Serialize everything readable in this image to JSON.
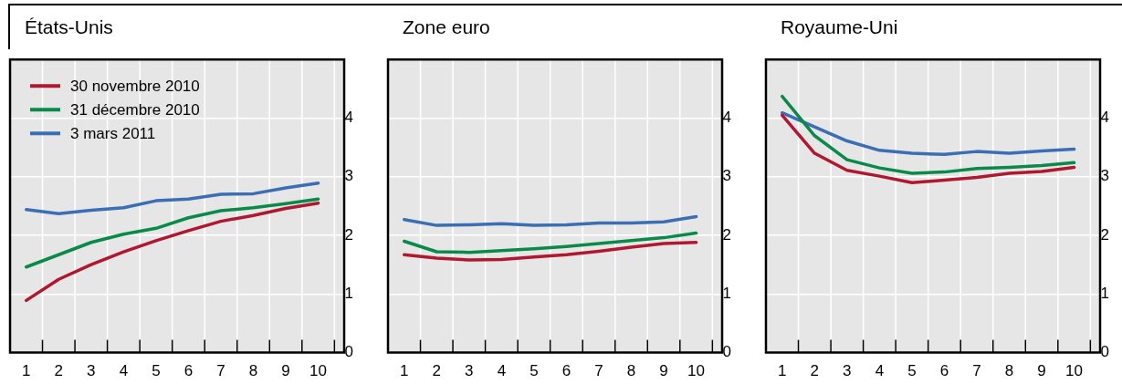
{
  "chart_data": [
    {
      "type": "line",
      "title": "États-Unis",
      "categories": [
        "1",
        "2",
        "3",
        "4",
        "5",
        "6",
        "7",
        "8",
        "9",
        "10"
      ],
      "ylim": [
        0,
        5
      ],
      "yticks": [
        0,
        1,
        2,
        3,
        4
      ],
      "grid": true,
      "legend": "top left",
      "series": [
        {
          "name": "30 novembre 2010",
          "color": "#b0182f",
          "values": [
            0.89,
            1.25,
            1.5,
            1.72,
            1.91,
            2.08,
            2.24,
            2.34,
            2.46,
            2.55
          ]
        },
        {
          "name": "31 décembre 2010",
          "color": "#0a8a4a",
          "values": [
            1.46,
            1.67,
            1.88,
            2.02,
            2.12,
            2.3,
            2.42,
            2.47,
            2.54,
            2.62
          ]
        },
        {
          "name": "3 mars 2011",
          "color": "#3b6eb5",
          "values": [
            2.44,
            2.37,
            2.43,
            2.47,
            2.59,
            2.62,
            2.7,
            2.71,
            2.81,
            2.89
          ]
        }
      ]
    },
    {
      "type": "line",
      "title": "Zone euro",
      "categories": [
        "1",
        "2",
        "3",
        "4",
        "5",
        "6",
        "7",
        "8",
        "9",
        "10"
      ],
      "ylim": [
        0,
        5
      ],
      "yticks": [
        0,
        1,
        2,
        3,
        4
      ],
      "grid": true,
      "series": [
        {
          "color": "#b0182f",
          "values": [
            1.67,
            1.61,
            1.58,
            1.59,
            1.63,
            1.67,
            1.73,
            1.8,
            1.86,
            1.88
          ]
        },
        {
          "color": "#0a8a4a",
          "values": [
            1.9,
            1.72,
            1.71,
            1.74,
            1.77,
            1.81,
            1.86,
            1.91,
            1.96,
            2.04
          ]
        },
        {
          "color": "#3b6eb5",
          "values": [
            2.27,
            2.17,
            2.18,
            2.2,
            2.17,
            2.18,
            2.21,
            2.21,
            2.23,
            2.32
          ]
        }
      ]
    },
    {
      "type": "line",
      "title": "Royaume-Uni",
      "categories": [
        "1",
        "2",
        "3",
        "4",
        "5",
        "6",
        "7",
        "8",
        "9",
        "10"
      ],
      "ylim": [
        0,
        5
      ],
      "yticks": [
        0,
        1,
        2,
        3,
        4
      ],
      "grid": true,
      "series": [
        {
          "color": "#b0182f",
          "values": [
            4.05,
            3.4,
            3.11,
            3.01,
            2.9,
            2.94,
            2.99,
            3.06,
            3.09,
            3.16
          ]
        },
        {
          "color": "#0a8a4a",
          "values": [
            4.37,
            3.7,
            3.29,
            3.15,
            3.06,
            3.08,
            3.14,
            3.16,
            3.19,
            3.24
          ]
        },
        {
          "color": "#3b6eb5",
          "values": [
            4.09,
            3.85,
            3.61,
            3.45,
            3.4,
            3.38,
            3.43,
            3.4,
            3.44,
            3.47
          ]
        }
      ]
    }
  ]
}
